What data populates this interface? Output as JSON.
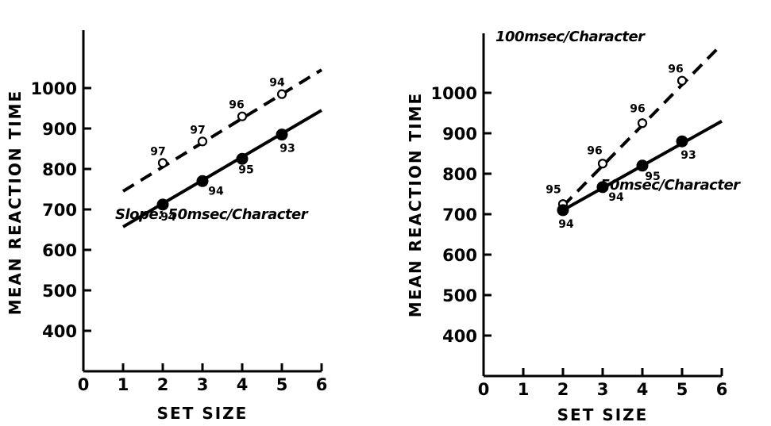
{
  "chart_data": [
    {
      "type": "line",
      "xlabel": "SET SIZE",
      "ylabel": "MEAN REACTION TIME",
      "xlim": [
        0,
        6
      ],
      "ylim": [
        300,
        1000
      ],
      "x_ticks": [
        0,
        1,
        2,
        3,
        4,
        5,
        6
      ],
      "y_ticks": [
        400,
        500,
        600,
        700,
        800,
        900,
        1000
      ],
      "grid": false,
      "annotations": [
        {
          "text": "Slope: 50msec/Character"
        }
      ],
      "series": [
        {
          "style": "dashed",
          "marker": "open-circle",
          "x": [
            2,
            3,
            4,
            5
          ],
          "y": [
            815,
            868,
            930,
            985
          ],
          "labels": [
            "97",
            "97",
            "96",
            "94"
          ],
          "fit_x": [
            1,
            6
          ],
          "fit_y": [
            745,
            1045
          ]
        },
        {
          "style": "solid",
          "marker": "filled-circle",
          "x": [
            2,
            3,
            4,
            5
          ],
          "y": [
            712,
            770,
            825,
            885
          ],
          "labels": [
            "94",
            "94",
            "95",
            "93"
          ],
          "fit_x": [
            1,
            6
          ],
          "fit_y": [
            657,
            945
          ]
        }
      ]
    },
    {
      "type": "line",
      "xlabel": "SET SIZE",
      "ylabel": "MEAN REACTION TIME",
      "xlim": [
        0,
        6
      ],
      "ylim": [
        300,
        1000
      ],
      "x_ticks": [
        0,
        1,
        2,
        3,
        4,
        5,
        6
      ],
      "y_ticks": [
        400,
        500,
        600,
        700,
        800,
        900,
        1000
      ],
      "grid": false,
      "series": [
        {
          "name": "100msec/Character",
          "style": "dashed",
          "marker": "open-circle",
          "x": [
            2,
            3,
            4,
            5
          ],
          "y": [
            725,
            825,
            925,
            1030
          ],
          "labels": [
            "95",
            "96",
            "96",
            "96"
          ],
          "fit_x": [
            2,
            6
          ],
          "fit_y": [
            720,
            1120
          ]
        },
        {
          "name": "50msec/Character",
          "style": "solid",
          "marker": "filled-circle",
          "x": [
            2,
            3,
            4,
            5
          ],
          "y": [
            710,
            767,
            820,
            880
          ],
          "labels": [
            "94",
            "94",
            "95",
            "93"
          ],
          "fit_x": [
            2,
            6
          ],
          "fit_y": [
            710,
            930
          ]
        }
      ]
    }
  ]
}
